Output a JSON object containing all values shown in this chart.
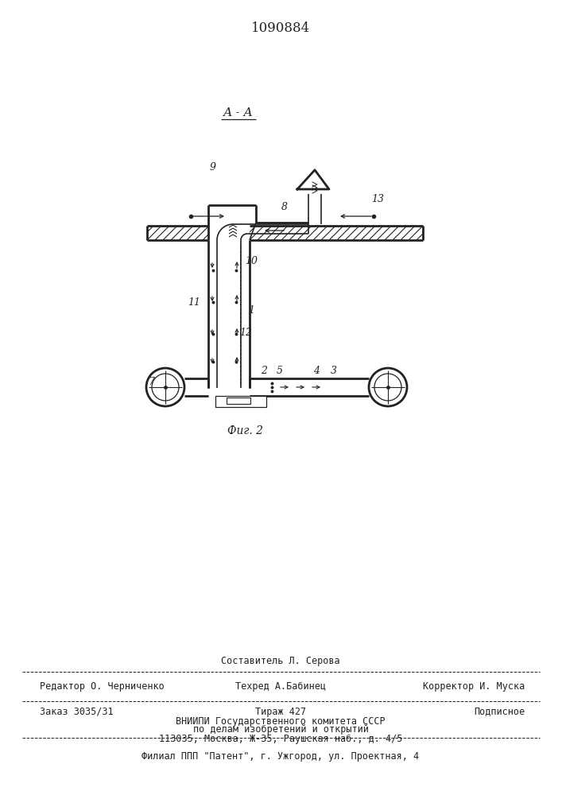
{
  "patent_number": "1090884",
  "section_label": "А - А",
  "fig_label": "Фиг. 2",
  "bg_color": "#ffffff",
  "line_color": "#222222"
}
